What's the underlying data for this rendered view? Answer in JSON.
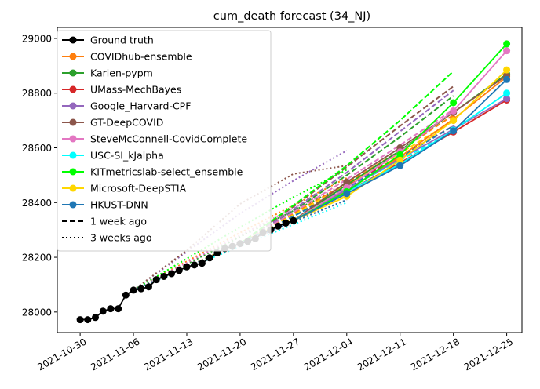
{
  "chart_data": {
    "type": "line",
    "title": "cum_death forecast (34_NJ)",
    "xlabel": "",
    "ylabel": "",
    "xlim": [
      "2021-10-27",
      "2021-12-27"
    ],
    "ylim": [
      27925,
      29040
    ],
    "x_ticks": [
      "2021-10-30",
      "2021-11-06",
      "2021-11-13",
      "2021-11-20",
      "2021-11-27",
      "2021-12-04",
      "2021-12-11",
      "2021-12-18",
      "2021-12-25"
    ],
    "y_ticks": [
      28000,
      28200,
      28400,
      28600,
      28800,
      29000
    ],
    "grid": false,
    "legend_position": "upper-left",
    "legend": [
      {
        "label": "Ground truth",
        "color": "#000000",
        "style": "solid-marker"
      },
      {
        "label": "COVIDhub-ensemble",
        "color": "#ff7f0e",
        "style": "solid-marker"
      },
      {
        "label": "Karlen-pypm",
        "color": "#2ca02c",
        "style": "solid-marker"
      },
      {
        "label": "UMass-MechBayes",
        "color": "#d62728",
        "style": "solid-marker"
      },
      {
        "label": "Google_Harvard-CPF",
        "color": "#9467bd",
        "style": "solid-marker"
      },
      {
        "label": "GT-DeepCOVID",
        "color": "#8c564b",
        "style": "solid-marker"
      },
      {
        "label": "SteveMcConnell-CovidComplete",
        "color": "#e377c2",
        "style": "solid-marker"
      },
      {
        "label": "USC-SI_kJalpha",
        "color": "#00ffff",
        "style": "solid-marker"
      },
      {
        "label": "KITmetricslab-select_ensemble",
        "color": "#00ff00",
        "style": "solid-marker"
      },
      {
        "label": "Microsoft-DeepSTIA",
        "color": "#ffd700",
        "style": "solid-marker"
      },
      {
        "label": "HKUST-DNN",
        "color": "#1f77b4",
        "style": "solid-marker"
      },
      {
        "label": "1 week ago",
        "color": "#000000",
        "style": "dashed"
      },
      {
        "label": "3 weeks ago",
        "color": "#000000",
        "style": "dotted"
      }
    ],
    "ground_truth": {
      "color": "#000000",
      "x": [
        "2021-10-30",
        "2021-10-31",
        "2021-11-01",
        "2021-11-02",
        "2021-11-03",
        "2021-11-04",
        "2021-11-05",
        "2021-11-06",
        "2021-11-07",
        "2021-11-08",
        "2021-11-09",
        "2021-11-10",
        "2021-11-11",
        "2021-11-12",
        "2021-11-13",
        "2021-11-14",
        "2021-11-15",
        "2021-11-16",
        "2021-11-17",
        "2021-11-18",
        "2021-11-19",
        "2021-11-20",
        "2021-11-21",
        "2021-11-22",
        "2021-11-23",
        "2021-11-24",
        "2021-11-25",
        "2021-11-26",
        "2021-11-27"
      ],
      "y": [
        27972,
        27972,
        27980,
        28003,
        28012,
        28012,
        28062,
        28080,
        28085,
        28092,
        28118,
        28130,
        28140,
        28152,
        28165,
        28172,
        28178,
        28198,
        28216,
        28232,
        28240,
        28250,
        28258,
        28268,
        28290,
        28300,
        28314,
        28325,
        28334
      ]
    },
    "forecast_x": [
      "2021-11-27",
      "2021-12-04",
      "2021-12-11",
      "2021-12-18",
      "2021-12-25"
    ],
    "series": [
      {
        "name": "COVIDhub-ensemble",
        "color": "#ff7f0e",
        "y": [
          28334,
          28445,
          28567,
          28705,
          28860
        ]
      },
      {
        "name": "Karlen-pypm",
        "color": "#2ca02c",
        "y": [
          28334,
          28465,
          28590,
          28730,
          28870
        ]
      },
      {
        "name": "UMass-MechBayes",
        "color": "#d62728",
        "y": [
          28334,
          28440,
          28545,
          28658,
          28775
        ]
      },
      {
        "name": "Google_Harvard-CPF",
        "color": "#9467bd",
        "y": [
          28334,
          28448,
          28560,
          28668,
          28780
        ]
      },
      {
        "name": "GT-DeepCOVID",
        "color": "#8c564b",
        "y": [
          28334,
          28475,
          28600,
          28730,
          28865
        ]
      },
      {
        "name": "SteveMcConnell-CovidComplete",
        "color": "#e377c2",
        "y": [
          28334,
          28455,
          28585,
          28735,
          28955
        ]
      },
      {
        "name": "USC-SI_kJalpha",
        "color": "#00ffff",
        "y": [
          28334,
          28440,
          28540,
          28665,
          28800
        ]
      },
      {
        "name": "KITmetricslab-select_ensemble",
        "color": "#00ff00",
        "y": [
          28334,
          28440,
          28575,
          28765,
          28980
        ]
      },
      {
        "name": "Microsoft-DeepSTIA",
        "color": "#ffd700",
        "y": [
          28334,
          28423,
          28555,
          28700,
          28885
        ]
      },
      {
        "name": "HKUST-DNN",
        "color": "#1f77b4",
        "y": [
          28334,
          28433,
          28535,
          28662,
          28850
        ]
      }
    ],
    "one_week_ago": {
      "x": [
        "2021-11-20",
        "2021-11-27",
        "2021-12-04",
        "2021-12-11",
        "2021-12-18"
      ],
      "series": [
        {
          "name": "COVIDhub-ensemble",
          "color": "#ff7f0e",
          "y": [
            28250,
            28360,
            28470,
            28590,
            28720
          ]
        },
        {
          "name": "Karlen-pypm",
          "color": "#2ca02c",
          "y": [
            28250,
            28370,
            28500,
            28640,
            28790
          ]
        },
        {
          "name": "UMass-MechBayes",
          "color": "#d62728",
          "y": [
            28250,
            28355,
            28460,
            28570,
            28680
          ]
        },
        {
          "name": "Google_Harvard-CPF",
          "color": "#9467bd",
          "y": [
            28250,
            28375,
            28510,
            28660,
            28810
          ]
        },
        {
          "name": "GT-DeepCOVID",
          "color": "#8c564b",
          "y": [
            28250,
            28385,
            28530,
            28680,
            28825
          ]
        },
        {
          "name": "SteveMcConnell-CovidComplete",
          "color": "#e377c2",
          "y": [
            28250,
            28365,
            28485,
            28610,
            28740
          ]
        },
        {
          "name": "USC-SI_kJalpha",
          "color": "#00ffff",
          "y": [
            28250,
            28350,
            28450,
            28555,
            28660
          ]
        },
        {
          "name": "KITmetricslab-select_ensemble",
          "color": "#00ff00",
          "y": [
            28250,
            28390,
            28535,
            28700,
            28880
          ]
        },
        {
          "name": "Microsoft-DeepSTIA",
          "color": "#ffd700",
          "y": [
            28250,
            28355,
            28465,
            28580,
            28700
          ]
        },
        {
          "name": "HKUST-DNN",
          "color": "#1f77b4",
          "y": [
            28250,
            28350,
            28455,
            28565,
            28680
          ]
        }
      ]
    },
    "three_weeks_ago": {
      "x": [
        "2021-11-06",
        "2021-11-13",
        "2021-11-20",
        "2021-11-27",
        "2021-12-04"
      ],
      "series": [
        {
          "name": "COVIDhub-ensemble",
          "color": "#ff7f0e",
          "y": [
            28080,
            28185,
            28290,
            28390,
            28490
          ]
        },
        {
          "name": "Karlen-pypm",
          "color": "#2ca02c",
          "y": [
            28080,
            28175,
            28275,
            28370,
            28465
          ]
        },
        {
          "name": "UMass-MechBayes",
          "color": "#d62728",
          "y": [
            28080,
            28165,
            28250,
            28330,
            28410
          ]
        },
        {
          "name": "Google_Harvard-CPF",
          "color": "#9467bd",
          "y": [
            28080,
            28220,
            28360,
            28480,
            28590
          ]
        },
        {
          "name": "GT-DeepCOVID",
          "color": "#8c564b",
          "y": [
            28080,
            28225,
            28395,
            28505,
            28535
          ]
        },
        {
          "name": "SteveMcConnell-CovidComplete",
          "color": "#e377c2",
          "y": [
            28080,
            28180,
            28280,
            28380,
            28470
          ]
        },
        {
          "name": "USC-SI_kJalpha",
          "color": "#00ffff",
          "y": [
            28080,
            28160,
            28240,
            28320,
            28400
          ]
        },
        {
          "name": "KITmetricslab-select_ensemble",
          "color": "#00ff00",
          "y": [
            28080,
            28195,
            28310,
            28420,
            28520
          ]
        },
        {
          "name": "Microsoft-DeepSTIA",
          "color": "#ffd700",
          "y": [
            28080,
            28165,
            28255,
            28340,
            28425
          ]
        },
        {
          "name": "HKUST-DNN",
          "color": "#1f77b4",
          "y": [
            28080,
            28165,
            28250,
            28330,
            28410
          ]
        }
      ]
    }
  }
}
